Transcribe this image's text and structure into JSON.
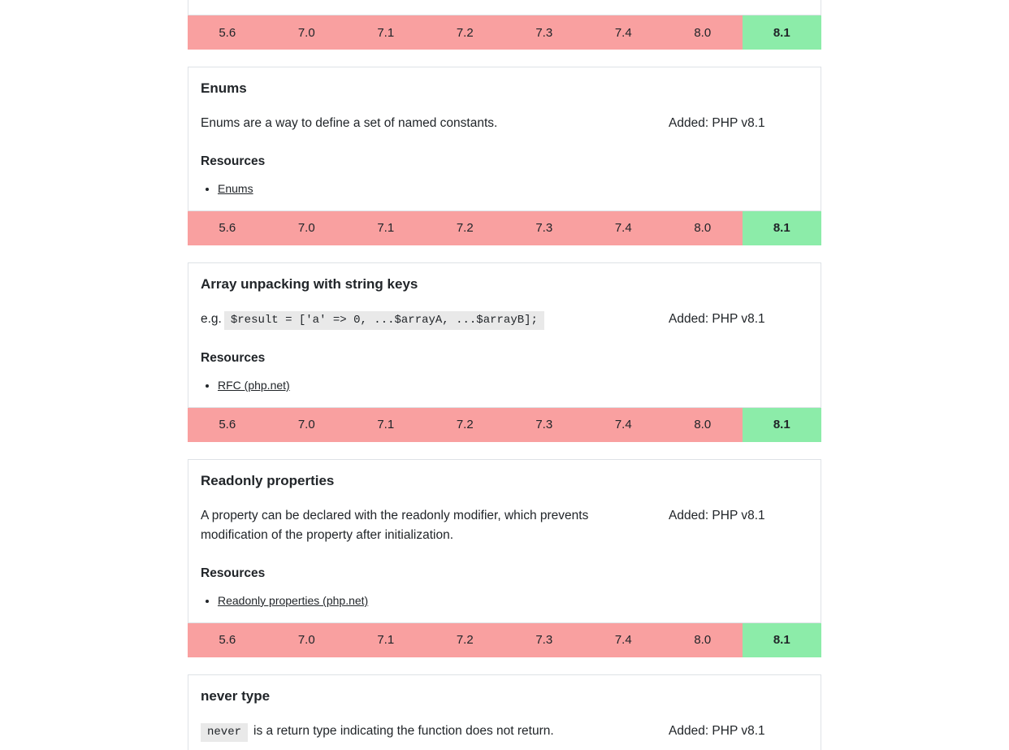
{
  "labels": {
    "resources": "Resources",
    "example_prefix": "e.g."
  },
  "colors": {
    "unsupported": "#f9a0a0",
    "supported": "#8ceca9",
    "card-border": "#dee2e6",
    "code-bg": "#e9e9e9"
  },
  "versions": [
    {
      "label": "5.6",
      "supported": false
    },
    {
      "label": "7.0",
      "supported": false
    },
    {
      "label": "7.1",
      "supported": false
    },
    {
      "label": "7.2",
      "supported": false
    },
    {
      "label": "7.3",
      "supported": false
    },
    {
      "label": "7.4",
      "supported": false
    },
    {
      "label": "8.0",
      "supported": false
    },
    {
      "label": "8.1",
      "supported": true
    }
  ],
  "features": [
    {
      "title": "Enums",
      "description": "Enums are a way to define a set of named constants.",
      "added": "Added: PHP v8.1",
      "resources": [
        "Enums"
      ]
    },
    {
      "title": "Array unpacking with string keys",
      "code": "$result = ['a' => 0, ...$arrayA, ...$arrayB];",
      "added": "Added: PHP v8.1",
      "resources": [
        "RFC (php.net)"
      ]
    },
    {
      "title": "Readonly properties",
      "description": "A property can be declared with the readonly modifier, which prevents modification of the property after initialization.",
      "added": "Added: PHP v8.1",
      "resources": [
        "Readonly properties (php.net)"
      ]
    },
    {
      "title": "never type",
      "code": "never",
      "description": "is a return type indicating the function does not return.",
      "added": "Added: PHP v8.1"
    }
  ]
}
